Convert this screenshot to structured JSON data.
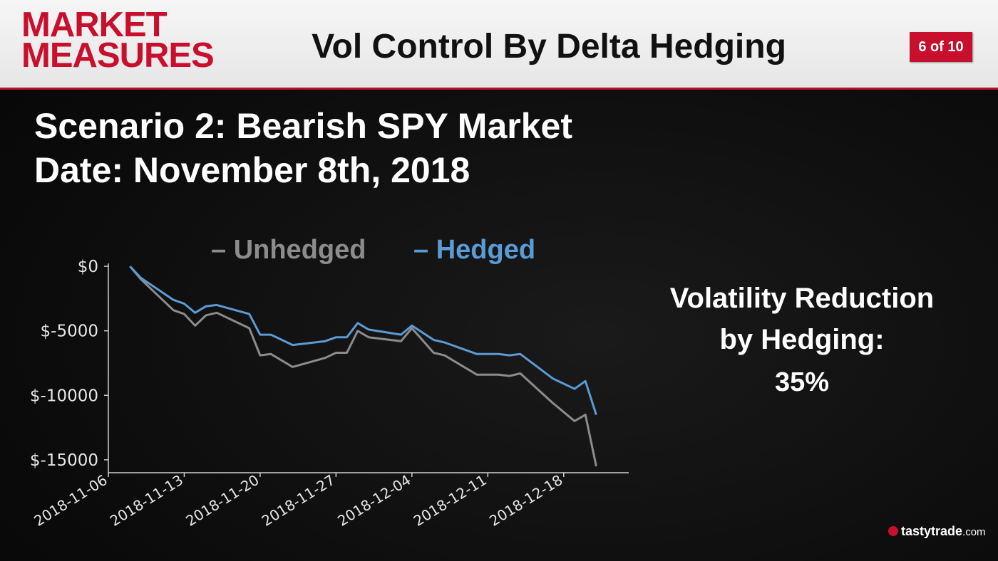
{
  "header": {
    "logo_line1": "MARKET",
    "logo_line2": "MEASURES",
    "title": "Vol Control By Delta Hedging",
    "page_badge": "6 of 10"
  },
  "scenario": {
    "line1": "Scenario 2: Bearish SPY Market",
    "line2": "Date: November 8th, 2018"
  },
  "stat": {
    "line1": "Volatility Reduction",
    "line2": "by Hedging:",
    "value": "35%"
  },
  "brand": {
    "name": "tastytrade",
    "tld": ".com"
  },
  "colors": {
    "unhedged": "#8c8c8c",
    "hedged": "#5b9bd5",
    "accent": "#c8102e"
  },
  "chart_data": {
    "type": "line",
    "legend": {
      "placement": "top",
      "entries": [
        "– Unhedged",
        "– Hedged"
      ]
    },
    "yticks": [
      "$0",
      "$-5000",
      "$-10000",
      "$-15000"
    ],
    "ytick_values": [
      0,
      -5000,
      -10000,
      -15000
    ],
    "ylim": [
      -16000,
      500
    ],
    "xlim": [
      "2018-11-06",
      "2018-12-24"
    ],
    "xticks": [
      "2018-11-06",
      "2018-11-13",
      "2018-11-20",
      "2018-11-27",
      "2018-12-04",
      "2018-12-11",
      "2018-12-18"
    ],
    "grid": false,
    "x": [
      "2018-11-08",
      "2018-11-09",
      "2018-11-12",
      "2018-11-13",
      "2018-11-14",
      "2018-11-15",
      "2018-11-16",
      "2018-11-19",
      "2018-11-20",
      "2018-11-21",
      "2018-11-23",
      "2018-11-26",
      "2018-11-27",
      "2018-11-28",
      "2018-11-29",
      "2018-11-30",
      "2018-12-03",
      "2018-12-04",
      "2018-12-06",
      "2018-12-07",
      "2018-12-10",
      "2018-12-11",
      "2018-12-12",
      "2018-12-13",
      "2018-12-14",
      "2018-12-17",
      "2018-12-18",
      "2018-12-19",
      "2018-12-20",
      "2018-12-21"
    ],
    "series": [
      {
        "name": "Unhedged",
        "values": [
          0,
          -1000,
          -3400,
          -3700,
          -4600,
          -3800,
          -3600,
          -4800,
          -6900,
          -6800,
          -7800,
          -7100,
          -6700,
          -6700,
          -5000,
          -5500,
          -5800,
          -4800,
          -6700,
          -6900,
          -8400,
          -8400,
          -8400,
          -8500,
          -8300,
          -10600,
          -11300,
          -12000,
          -11500,
          -15500
        ]
      },
      {
        "name": "Hedged",
        "values": [
          0,
          -900,
          -2600,
          -2900,
          -3600,
          -3100,
          -3000,
          -3700,
          -5300,
          -5300,
          -6100,
          -5800,
          -5500,
          -5500,
          -4400,
          -4900,
          -5300,
          -4600,
          -5700,
          -5900,
          -6800,
          -6800,
          -6800,
          -6900,
          -6800,
          -8700,
          -9100,
          -9500,
          -8900,
          -11500
        ]
      }
    ]
  }
}
